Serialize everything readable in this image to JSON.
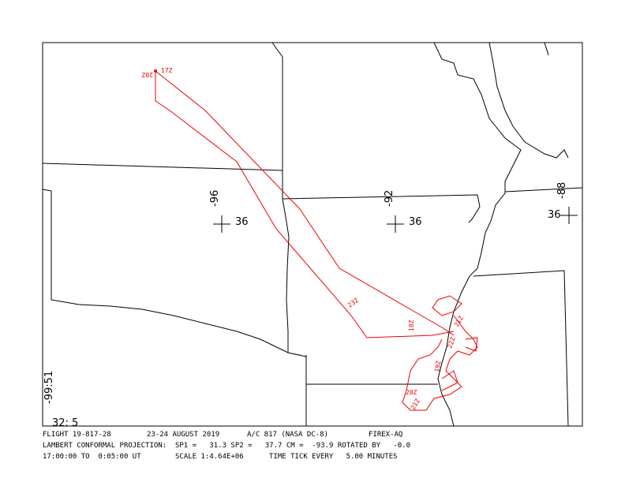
{
  "map": {
    "grid_marks": [
      {
        "lon": "-96",
        "lat": "36"
      },
      {
        "lon": "-92",
        "lat": "36"
      },
      {
        "lon": "-88",
        "lat": "36"
      }
    ],
    "corner_lon": "-99:51",
    "corner_lat": "32: 5",
    "track_labels": [
      "17Z",
      "20Z",
      "23Z",
      "18Z",
      "21Z",
      "22Z",
      "19Z",
      "20Z",
      "21Z"
    ]
  },
  "footer": {
    "line1": [
      "FLIGHT 19-817-28",
      "23-24 AUGUST 2019",
      "A/C 817 (NASA DC-8)",
      "FIREX-AQ"
    ],
    "line2": "LAMBERT CONFORMAL PROJECTION:  SP1 =   31.3 SP2 =   37.7 CM =  -93.9 ROTATED BY   -0.0",
    "line3": [
      "17:00:00 TO  0:05:00 UT",
      "SCALE 1:4.64E+06",
      "TIME TICK EVERY   5.00 MINUTES"
    ]
  }
}
